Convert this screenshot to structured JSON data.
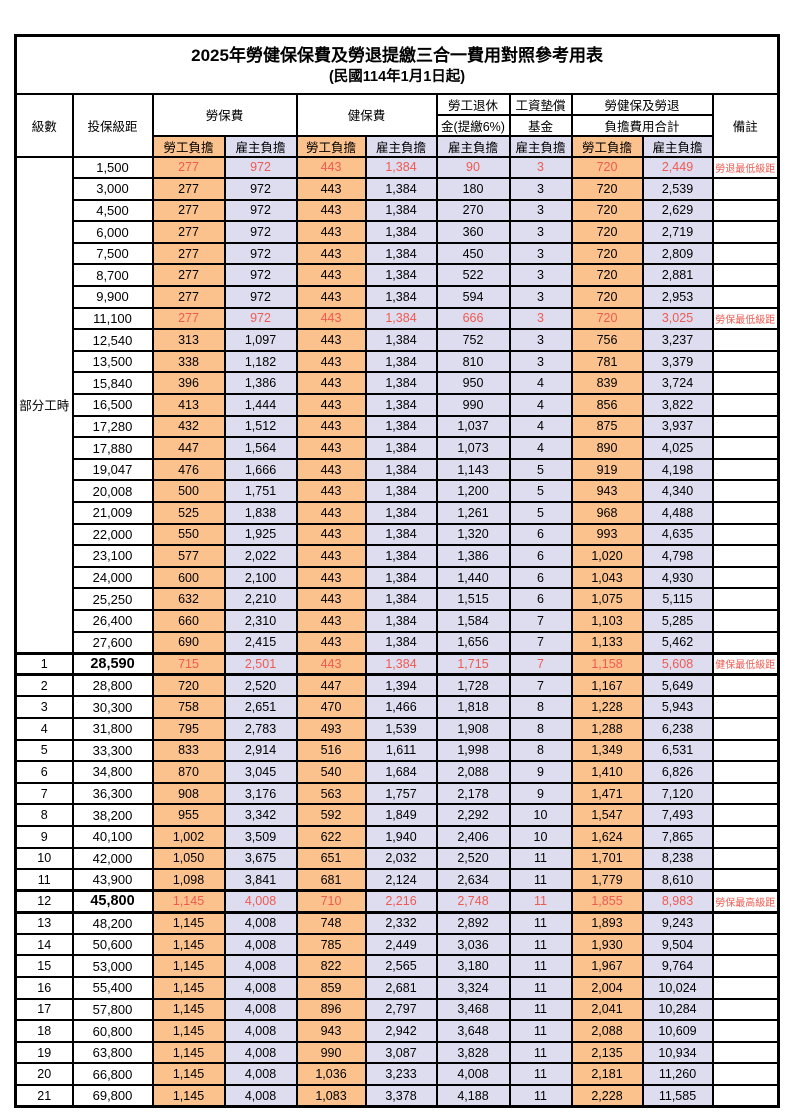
{
  "title": {
    "main": "2025年勞健保保費及勞退提繳三合一費用對照參考用表",
    "effective": "(民國114年1月1日起)"
  },
  "header": {
    "level": "級數",
    "bracket": "投保級距",
    "labor_ins": "勞保費",
    "health_ins": "健保費",
    "pension_line1": "勞工退休",
    "pension_line2": "金(提繳6%)",
    "wage_fund_line1": "工資墊償",
    "wage_fund_line2": "基金",
    "total_line1": "勞健保及勞退",
    "total_line2": "負擔費用合計",
    "remark": "備註",
    "employee": "勞工負擔",
    "employer": "雇主負擔"
  },
  "colors": {
    "employee_bg": "#FBC28E",
    "employer_bg": "#DEDCEF",
    "highlight_red": "#EF5A50"
  },
  "side_label": {
    "label": "部分工時",
    "rowspan": 23
  },
  "rows": [
    {
      "level": "",
      "bracket": "1,500",
      "v": [
        "277",
        "972",
        "443",
        "1,384",
        "90",
        "3",
        "720",
        "2,449"
      ],
      "remark": "勞退最低級距",
      "red": true
    },
    {
      "level": "",
      "bracket": "3,000",
      "v": [
        "277",
        "972",
        "443",
        "1,384",
        "180",
        "3",
        "720",
        "2,539"
      ],
      "remark": ""
    },
    {
      "level": "",
      "bracket": "4,500",
      "v": [
        "277",
        "972",
        "443",
        "1,384",
        "270",
        "3",
        "720",
        "2,629"
      ],
      "remark": ""
    },
    {
      "level": "",
      "bracket": "6,000",
      "v": [
        "277",
        "972",
        "443",
        "1,384",
        "360",
        "3",
        "720",
        "2,719"
      ],
      "remark": ""
    },
    {
      "level": "",
      "bracket": "7,500",
      "v": [
        "277",
        "972",
        "443",
        "1,384",
        "450",
        "3",
        "720",
        "2,809"
      ],
      "remark": ""
    },
    {
      "level": "",
      "bracket": "8,700",
      "v": [
        "277",
        "972",
        "443",
        "1,384",
        "522",
        "3",
        "720",
        "2,881"
      ],
      "remark": ""
    },
    {
      "level": "",
      "bracket": "9,900",
      "v": [
        "277",
        "972",
        "443",
        "1,384",
        "594",
        "3",
        "720",
        "2,953"
      ],
      "remark": ""
    },
    {
      "level": "",
      "bracket": "11,100",
      "v": [
        "277",
        "972",
        "443",
        "1,384",
        "666",
        "3",
        "720",
        "3,025"
      ],
      "remark": "勞保最低級距",
      "red": true
    },
    {
      "level": "",
      "bracket": "12,540",
      "v": [
        "313",
        "1,097",
        "443",
        "1,384",
        "752",
        "3",
        "756",
        "3,237"
      ],
      "remark": ""
    },
    {
      "level": "",
      "bracket": "13,500",
      "v": [
        "338",
        "1,182",
        "443",
        "1,384",
        "810",
        "3",
        "781",
        "3,379"
      ],
      "remark": ""
    },
    {
      "level": "",
      "bracket": "15,840",
      "v": [
        "396",
        "1,386",
        "443",
        "1,384",
        "950",
        "4",
        "839",
        "3,724"
      ],
      "remark": ""
    },
    {
      "level": "",
      "bracket": "16,500",
      "v": [
        "413",
        "1,444",
        "443",
        "1,384",
        "990",
        "4",
        "856",
        "3,822"
      ],
      "remark": ""
    },
    {
      "level": "",
      "bracket": "17,280",
      "v": [
        "432",
        "1,512",
        "443",
        "1,384",
        "1,037",
        "4",
        "875",
        "3,937"
      ],
      "remark": ""
    },
    {
      "level": "",
      "bracket": "17,880",
      "v": [
        "447",
        "1,564",
        "443",
        "1,384",
        "1,073",
        "4",
        "890",
        "4,025"
      ],
      "remark": ""
    },
    {
      "level": "",
      "bracket": "19,047",
      "v": [
        "476",
        "1,666",
        "443",
        "1,384",
        "1,143",
        "5",
        "919",
        "4,198"
      ],
      "remark": ""
    },
    {
      "level": "",
      "bracket": "20,008",
      "v": [
        "500",
        "1,751",
        "443",
        "1,384",
        "1,200",
        "5",
        "943",
        "4,340"
      ],
      "remark": ""
    },
    {
      "level": "",
      "bracket": "21,009",
      "v": [
        "525",
        "1,838",
        "443",
        "1,384",
        "1,261",
        "5",
        "968",
        "4,488"
      ],
      "remark": ""
    },
    {
      "level": "",
      "bracket": "22,000",
      "v": [
        "550",
        "1,925",
        "443",
        "1,384",
        "1,320",
        "6",
        "993",
        "4,635"
      ],
      "remark": ""
    },
    {
      "level": "",
      "bracket": "23,100",
      "v": [
        "577",
        "2,022",
        "443",
        "1,384",
        "1,386",
        "6",
        "1,020",
        "4,798"
      ],
      "remark": ""
    },
    {
      "level": "",
      "bracket": "24,000",
      "v": [
        "600",
        "2,100",
        "443",
        "1,384",
        "1,440",
        "6",
        "1,043",
        "4,930"
      ],
      "remark": ""
    },
    {
      "level": "",
      "bracket": "25,250",
      "v": [
        "632",
        "2,210",
        "443",
        "1,384",
        "1,515",
        "6",
        "1,075",
        "5,115"
      ],
      "remark": ""
    },
    {
      "level": "",
      "bracket": "26,400",
      "v": [
        "660",
        "2,310",
        "443",
        "1,384",
        "1,584",
        "7",
        "1,103",
        "5,285"
      ],
      "remark": ""
    },
    {
      "level": "",
      "bracket": "27,600",
      "v": [
        "690",
        "2,415",
        "443",
        "1,384",
        "1,656",
        "7",
        "1,133",
        "5,462"
      ],
      "remark": ""
    },
    {
      "level": "1",
      "bracket": "28,590",
      "v": [
        "715",
        "2,501",
        "443",
        "1,384",
        "1,715",
        "7",
        "1,158",
        "5,608"
      ],
      "remark": "健保最低級距",
      "red": true,
      "bold": true,
      "thick": true
    },
    {
      "level": "2",
      "bracket": "28,800",
      "v": [
        "720",
        "2,520",
        "447",
        "1,394",
        "1,728",
        "7",
        "1,167",
        "5,649"
      ],
      "remark": ""
    },
    {
      "level": "3",
      "bracket": "30,300",
      "v": [
        "758",
        "2,651",
        "470",
        "1,466",
        "1,818",
        "8",
        "1,228",
        "5,943"
      ],
      "remark": ""
    },
    {
      "level": "4",
      "bracket": "31,800",
      "v": [
        "795",
        "2,783",
        "493",
        "1,539",
        "1,908",
        "8",
        "1,288",
        "6,238"
      ],
      "remark": ""
    },
    {
      "level": "5",
      "bracket": "33,300",
      "v": [
        "833",
        "2,914",
        "516",
        "1,611",
        "1,998",
        "8",
        "1,349",
        "6,531"
      ],
      "remark": ""
    },
    {
      "level": "6",
      "bracket": "34,800",
      "v": [
        "870",
        "3,045",
        "540",
        "1,684",
        "2,088",
        "9",
        "1,410",
        "6,826"
      ],
      "remark": ""
    },
    {
      "level": "7",
      "bracket": "36,300",
      "v": [
        "908",
        "3,176",
        "563",
        "1,757",
        "2,178",
        "9",
        "1,471",
        "7,120"
      ],
      "remark": ""
    },
    {
      "level": "8",
      "bracket": "38,200",
      "v": [
        "955",
        "3,342",
        "592",
        "1,849",
        "2,292",
        "10",
        "1,547",
        "7,493"
      ],
      "remark": ""
    },
    {
      "level": "9",
      "bracket": "40,100",
      "v": [
        "1,002",
        "3,509",
        "622",
        "1,940",
        "2,406",
        "10",
        "1,624",
        "7,865"
      ],
      "remark": ""
    },
    {
      "level": "10",
      "bracket": "42,000",
      "v": [
        "1,050",
        "3,675",
        "651",
        "2,032",
        "2,520",
        "11",
        "1,701",
        "8,238"
      ],
      "remark": ""
    },
    {
      "level": "11",
      "bracket": "43,900",
      "v": [
        "1,098",
        "3,841",
        "681",
        "2,124",
        "2,634",
        "11",
        "1,779",
        "8,610"
      ],
      "remark": ""
    },
    {
      "level": "12",
      "bracket": "45,800",
      "v": [
        "1,145",
        "4,008",
        "710",
        "2,216",
        "2,748",
        "11",
        "1,855",
        "8,983"
      ],
      "remark": "勞保最高級距",
      "red": true,
      "bold": true,
      "thick": true
    },
    {
      "level": "13",
      "bracket": "48,200",
      "v": [
        "1,145",
        "4,008",
        "748",
        "2,332",
        "2,892",
        "11",
        "1,893",
        "9,243"
      ],
      "remark": ""
    },
    {
      "level": "14",
      "bracket": "50,600",
      "v": [
        "1,145",
        "4,008",
        "785",
        "2,449",
        "3,036",
        "11",
        "1,930",
        "9,504"
      ],
      "remark": ""
    },
    {
      "level": "15",
      "bracket": "53,000",
      "v": [
        "1,145",
        "4,008",
        "822",
        "2,565",
        "3,180",
        "11",
        "1,967",
        "9,764"
      ],
      "remark": ""
    },
    {
      "level": "16",
      "bracket": "55,400",
      "v": [
        "1,145",
        "4,008",
        "859",
        "2,681",
        "3,324",
        "11",
        "2,004",
        "10,024"
      ],
      "remark": ""
    },
    {
      "level": "17",
      "bracket": "57,800",
      "v": [
        "1,145",
        "4,008",
        "896",
        "2,797",
        "3,468",
        "11",
        "2,041",
        "10,284"
      ],
      "remark": ""
    },
    {
      "level": "18",
      "bracket": "60,800",
      "v": [
        "1,145",
        "4,008",
        "943",
        "2,942",
        "3,648",
        "11",
        "2,088",
        "10,609"
      ],
      "remark": ""
    },
    {
      "level": "19",
      "bracket": "63,800",
      "v": [
        "1,145",
        "4,008",
        "990",
        "3,087",
        "3,828",
        "11",
        "2,135",
        "10,934"
      ],
      "remark": ""
    },
    {
      "level": "20",
      "bracket": "66,800",
      "v": [
        "1,145",
        "4,008",
        "1,036",
        "3,233",
        "4,008",
        "11",
        "2,181",
        "11,260"
      ],
      "remark": ""
    },
    {
      "level": "21",
      "bracket": "69,800",
      "v": [
        "1,145",
        "4,008",
        "1,083",
        "3,378",
        "4,188",
        "11",
        "2,228",
        "11,585"
      ],
      "remark": ""
    }
  ]
}
